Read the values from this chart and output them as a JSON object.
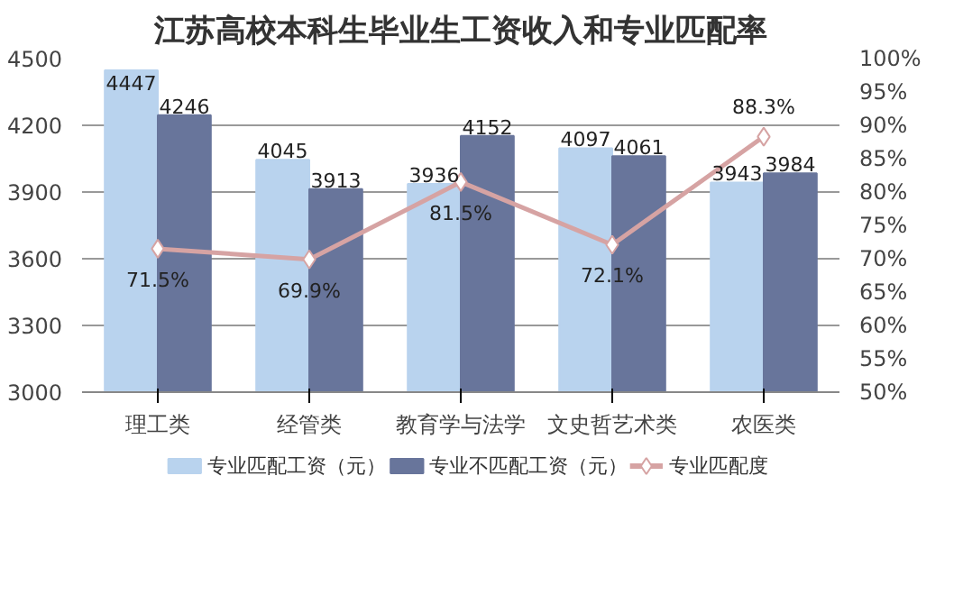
{
  "chart_data": {
    "type": "bar",
    "title": "江苏高校本科生毕业生工资收入和专业匹配率",
    "categories": [
      "理工类",
      "经管类",
      "教育学与法学",
      "文史哲艺术类",
      "农医类"
    ],
    "series": [
      {
        "name": "专业匹配工资（元）",
        "color": "#b9d3ee",
        "values": [
          4447,
          4045,
          3936,
          4097,
          3943
        ],
        "data_labels": true
      },
      {
        "name": "专业不匹配工资（元）",
        "color": "#68759b",
        "values": [
          4246,
          3913,
          4152,
          4061,
          3984
        ],
        "data_labels": true
      },
      {
        "name": "专业匹配度",
        "type": "line",
        "axis": "y2",
        "color": "#d6a3a3",
        "marker": "diamond",
        "values": [
          71.5,
          69.9,
          81.5,
          72.1,
          88.3
        ],
        "value_labels": [
          "71.5%",
          "69.9%",
          "81.5%",
          "72.1%",
          "88.3%"
        ]
      }
    ],
    "ylim": [
      3000,
      4500
    ],
    "yticks": [
      3000,
      3300,
      3600,
      3900,
      4200,
      4500
    ],
    "y2lim": [
      50,
      100
    ],
    "y2ticks": [
      {
        "value": 50,
        "label": "50%"
      },
      {
        "value": 55,
        "label": "55%"
      },
      {
        "value": 60,
        "label": "60%"
      },
      {
        "value": 65,
        "label": "65%"
      },
      {
        "value": 70,
        "label": "70%"
      },
      {
        "value": 75,
        "label": "75%"
      },
      {
        "value": 80,
        "label": "80%"
      },
      {
        "value": 85,
        "label": "85%"
      },
      {
        "value": 90,
        "label": "90%"
      },
      {
        "value": 95,
        "label": "95%"
      },
      {
        "value": 100,
        "label": "100%"
      }
    ],
    "grid": "y",
    "legend": "bottom"
  }
}
